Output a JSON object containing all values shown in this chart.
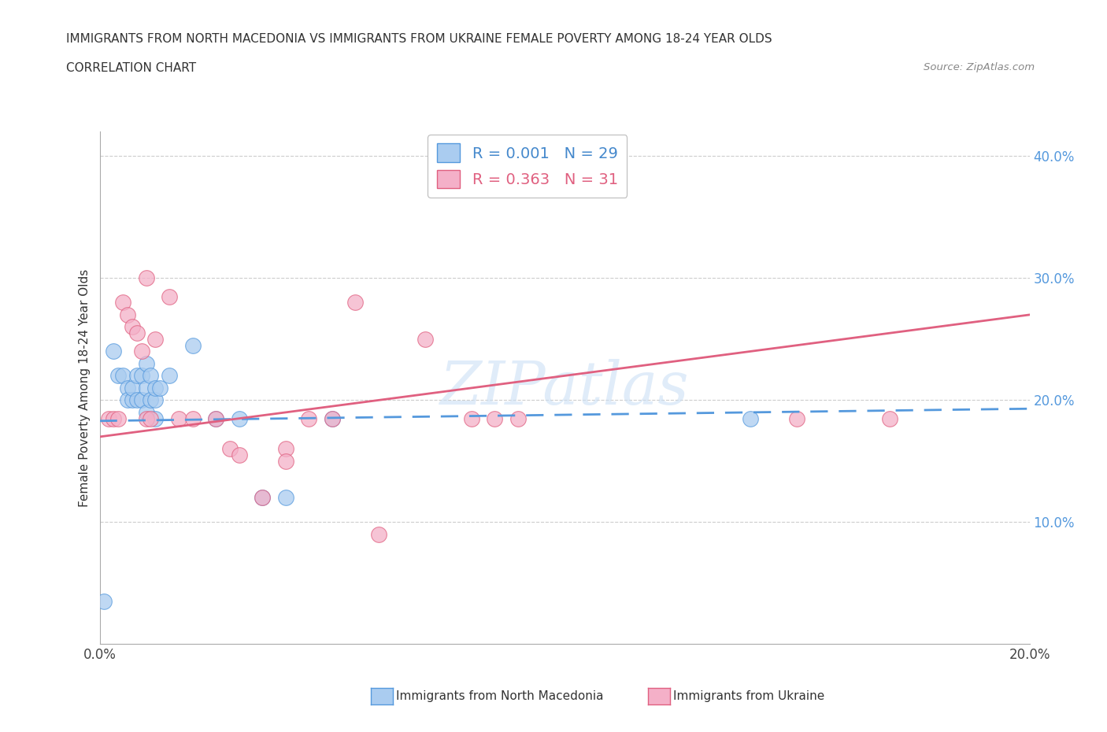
{
  "title_line1": "IMMIGRANTS FROM NORTH MACEDONIA VS IMMIGRANTS FROM UKRAINE FEMALE POVERTY AMONG 18-24 YEAR OLDS",
  "title_line2": "CORRELATION CHART",
  "source_text": "Source: ZipAtlas.com",
  "ylabel": "Female Poverty Among 18-24 Year Olds",
  "xlim": [
    0.0,
    0.2
  ],
  "ylim": [
    0.0,
    0.42
  ],
  "color_macedonia": "#aaccf0",
  "color_ukraine": "#f4b0c8",
  "line_color_macedonia": "#5599dd",
  "line_color_ukraine": "#e06080",
  "legend_r1": "R = 0.001   N = 29",
  "legend_r2": "R = 0.363   N = 31",
  "macedonia_x": [
    0.001,
    0.003,
    0.004,
    0.005,
    0.006,
    0.006,
    0.007,
    0.007,
    0.008,
    0.008,
    0.009,
    0.009,
    0.01,
    0.01,
    0.01,
    0.011,
    0.011,
    0.012,
    0.012,
    0.012,
    0.013,
    0.015,
    0.02,
    0.025,
    0.03,
    0.035,
    0.04,
    0.05,
    0.14
  ],
  "macedonia_y": [
    0.035,
    0.24,
    0.22,
    0.22,
    0.21,
    0.2,
    0.2,
    0.21,
    0.2,
    0.22,
    0.2,
    0.22,
    0.19,
    0.21,
    0.23,
    0.2,
    0.22,
    0.185,
    0.2,
    0.21,
    0.21,
    0.22,
    0.245,
    0.185,
    0.185,
    0.12,
    0.12,
    0.185,
    0.185
  ],
  "ukraine_x": [
    0.002,
    0.003,
    0.004,
    0.005,
    0.006,
    0.007,
    0.008,
    0.009,
    0.01,
    0.01,
    0.011,
    0.012,
    0.015,
    0.017,
    0.02,
    0.025,
    0.028,
    0.03,
    0.035,
    0.04,
    0.04,
    0.045,
    0.05,
    0.055,
    0.06,
    0.07,
    0.08,
    0.085,
    0.09,
    0.15,
    0.17
  ],
  "ukraine_y": [
    0.185,
    0.185,
    0.185,
    0.28,
    0.27,
    0.26,
    0.255,
    0.24,
    0.185,
    0.3,
    0.185,
    0.25,
    0.285,
    0.185,
    0.185,
    0.185,
    0.16,
    0.155,
    0.12,
    0.16,
    0.15,
    0.185,
    0.185,
    0.28,
    0.09,
    0.25,
    0.185,
    0.185,
    0.185,
    0.185,
    0.185
  ],
  "background_color": "#ffffff",
  "grid_color": "#cccccc",
  "watermark_color": "#cce0f5"
}
